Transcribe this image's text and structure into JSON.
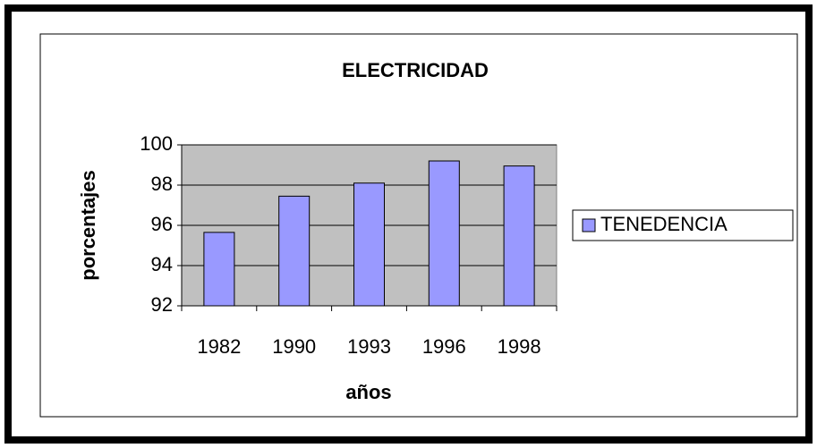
{
  "chart_data": {
    "type": "bar",
    "title": "ELECTRICIDAD",
    "x_label": "años",
    "y_label": "porcentajes",
    "categories": [
      "1982",
      "1990",
      "1993",
      "1996",
      "1998"
    ],
    "series": [
      {
        "name": "TENEDENCIA",
        "color": "#9999ff",
        "values": [
          95.65,
          97.45,
          98.1,
          99.2,
          98.95
        ]
      }
    ],
    "ylim": [
      92,
      100
    ],
    "yticks": [
      92,
      94,
      96,
      98,
      100
    ],
    "grid": true,
    "legend": "right"
  }
}
